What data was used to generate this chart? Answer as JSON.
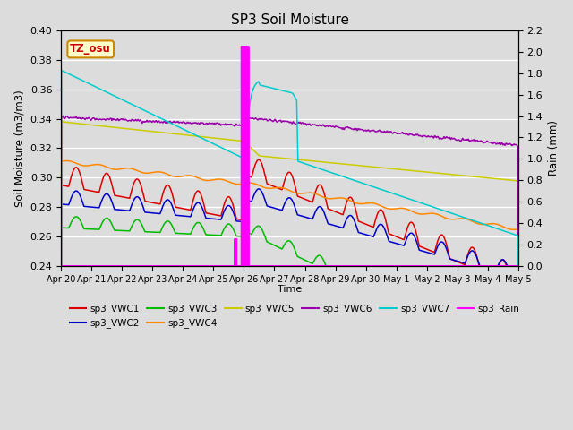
{
  "title": "SP3 Soil Moisture",
  "ylabel_left": "Soil Moisture (m3/m3)",
  "ylabel_right": "Rain (mm)",
  "xlabel": "Time",
  "ylim_left": [
    0.24,
    0.4
  ],
  "ylim_right": [
    0.0,
    2.2
  ],
  "background_color": "#dcdcdc",
  "plot_bg_color": "#dcdcdc",
  "grid_color": "white",
  "tz_label": "TZ_osu",
  "tz_box_color": "#ffffcc",
  "tz_border_color": "#cc8800",
  "colors": {
    "sp3_VWC1": "#dd0000",
    "sp3_VWC2": "#0000cc",
    "sp3_VWC3": "#00bb00",
    "sp3_VWC4": "#ff8800",
    "sp3_VWC5": "#cccc00",
    "sp3_VWC6": "#9900aa",
    "sp3_VWC7": "#00cccc",
    "sp3_Rain": "#ff00ff"
  },
  "x_tick_labels": [
    "Apr 20",
    "Apr 21",
    "Apr 22",
    "Apr 23",
    "Apr 24",
    "Apr 25",
    "Apr 26",
    "Apr 27",
    "Apr 28",
    "Apr 29",
    "Apr 30",
    "May 1",
    "May 2",
    "May 3",
    "May 4",
    "May 5"
  ],
  "num_points": 4320,
  "rain_event_day": 6.0,
  "rain_small_day": 5.72
}
